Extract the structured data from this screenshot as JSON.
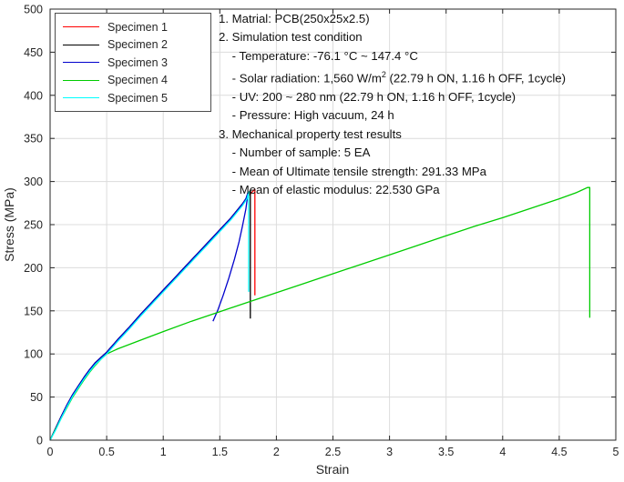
{
  "figure": {
    "background": "#ffffff"
  },
  "chart_data": {
    "type": "line",
    "title": "",
    "xlabel": "Strain",
    "ylabel": "Stress (MPa)",
    "xlim": [
      0,
      5
    ],
    "ylim": [
      0,
      500
    ],
    "xticks": [
      0,
      0.5,
      1,
      1.5,
      2,
      2.5,
      3,
      3.5,
      4,
      4.5,
      5
    ],
    "xtick_labels": [
      "0",
      "0.5",
      "1",
      "1.5",
      "2",
      "2.5",
      "3",
      "3.5",
      "4",
      "4.5",
      "5"
    ],
    "yticks": [
      0,
      50,
      100,
      150,
      200,
      250,
      300,
      350,
      400,
      450,
      500
    ],
    "ytick_labels": [
      "0",
      "50",
      "100",
      "150",
      "200",
      "250",
      "300",
      "350",
      "400",
      "450",
      "500"
    ],
    "grid": true,
    "grid_color": "#dcdcdc",
    "axis_color": "#262626",
    "legend_position": "top-left",
    "series": [
      {
        "name": "Specimen 1",
        "color": "#ff0000",
        "points": [
          [
            0,
            0
          ],
          [
            0.05,
            14
          ],
          [
            0.1,
            28
          ],
          [
            0.15,
            41
          ],
          [
            0.2,
            53
          ],
          [
            0.25,
            63
          ],
          [
            0.3,
            73
          ],
          [
            0.35,
            82
          ],
          [
            0.4,
            90
          ],
          [
            0.45,
            96
          ],
          [
            0.5,
            102
          ],
          [
            0.6,
            117
          ],
          [
            0.7,
            131
          ],
          [
            0.8,
            146
          ],
          [
            0.9,
            160
          ],
          [
            1.0,
            174
          ],
          [
            1.1,
            188
          ],
          [
            1.2,
            202
          ],
          [
            1.3,
            216
          ],
          [
            1.4,
            230
          ],
          [
            1.5,
            244
          ],
          [
            1.6,
            258
          ],
          [
            1.7,
            274
          ],
          [
            1.75,
            283
          ],
          [
            1.81,
            291
          ],
          [
            1.81,
            168
          ]
        ]
      },
      {
        "name": "Specimen 2",
        "color": "#000000",
        "points": [
          [
            0,
            0
          ],
          [
            0.05,
            14
          ],
          [
            0.1,
            28
          ],
          [
            0.15,
            41
          ],
          [
            0.2,
            53
          ],
          [
            0.25,
            63
          ],
          [
            0.3,
            73
          ],
          [
            0.35,
            82
          ],
          [
            0.4,
            90
          ],
          [
            0.45,
            96
          ],
          [
            0.5,
            102
          ],
          [
            0.6,
            117
          ],
          [
            0.7,
            131
          ],
          [
            0.8,
            146
          ],
          [
            0.9,
            160
          ],
          [
            1.0,
            174
          ],
          [
            1.1,
            188
          ],
          [
            1.2,
            202
          ],
          [
            1.3,
            216
          ],
          [
            1.4,
            230
          ],
          [
            1.5,
            244
          ],
          [
            1.6,
            258
          ],
          [
            1.7,
            274
          ],
          [
            1.75,
            284
          ],
          [
            1.77,
            290
          ],
          [
            1.77,
            141
          ]
        ]
      },
      {
        "name": "Specimen 3",
        "color": "#0000cc",
        "points": [
          [
            0,
            0
          ],
          [
            0.05,
            14
          ],
          [
            0.1,
            28
          ],
          [
            0.15,
            41
          ],
          [
            0.2,
            53
          ],
          [
            0.25,
            63
          ],
          [
            0.3,
            73
          ],
          [
            0.35,
            82
          ],
          [
            0.4,
            90
          ],
          [
            0.45,
            96
          ],
          [
            0.5,
            102
          ],
          [
            0.6,
            117
          ],
          [
            0.7,
            131
          ],
          [
            0.8,
            146
          ],
          [
            0.9,
            160
          ],
          [
            1.0,
            174
          ],
          [
            1.1,
            188
          ],
          [
            1.2,
            202
          ],
          [
            1.3,
            216
          ],
          [
            1.4,
            230
          ],
          [
            1.5,
            244
          ],
          [
            1.6,
            258
          ],
          [
            1.7,
            274
          ],
          [
            1.73,
            280
          ],
          [
            1.75,
            288
          ],
          [
            1.73,
            268
          ],
          [
            1.7,
            248
          ],
          [
            1.67,
            230
          ],
          [
            1.63,
            210
          ],
          [
            1.58,
            188
          ],
          [
            1.53,
            168
          ],
          [
            1.48,
            150
          ],
          [
            1.45,
            141
          ],
          [
            1.44,
            138
          ]
        ]
      },
      {
        "name": "Specimen 4",
        "color": "#00cc00",
        "points": [
          [
            0,
            0
          ],
          [
            0.05,
            13
          ],
          [
            0.1,
            26
          ],
          [
            0.15,
            38
          ],
          [
            0.2,
            50
          ],
          [
            0.25,
            60
          ],
          [
            0.3,
            70
          ],
          [
            0.35,
            79
          ],
          [
            0.4,
            87
          ],
          [
            0.45,
            94
          ],
          [
            0.5,
            100
          ],
          [
            0.6,
            106
          ],
          [
            0.8,
            116
          ],
          [
            1.0,
            126
          ],
          [
            1.25,
            138
          ],
          [
            1.5,
            149
          ],
          [
            1.75,
            160
          ],
          [
            2.0,
            171
          ],
          [
            2.25,
            182
          ],
          [
            2.5,
            193
          ],
          [
            2.75,
            204
          ],
          [
            3.0,
            215
          ],
          [
            3.25,
            226
          ],
          [
            3.5,
            237
          ],
          [
            3.75,
            248
          ],
          [
            4.0,
            258
          ],
          [
            4.25,
            269
          ],
          [
            4.5,
            280
          ],
          [
            4.65,
            287
          ],
          [
            4.75,
            293
          ],
          [
            4.77,
            293
          ],
          [
            4.77,
            142
          ]
        ]
      },
      {
        "name": "Specimen 5",
        "color": "#00ffff",
        "points": [
          [
            0,
            0
          ],
          [
            0.05,
            12
          ],
          [
            0.1,
            26
          ],
          [
            0.15,
            39
          ],
          [
            0.2,
            51
          ],
          [
            0.25,
            61
          ],
          [
            0.3,
            71
          ],
          [
            0.35,
            80
          ],
          [
            0.4,
            88
          ],
          [
            0.45,
            94
          ],
          [
            0.5,
            100
          ],
          [
            0.6,
            115
          ],
          [
            0.7,
            129
          ],
          [
            0.8,
            144
          ],
          [
            0.9,
            158
          ],
          [
            1.0,
            172
          ],
          [
            1.1,
            186
          ],
          [
            1.2,
            200
          ],
          [
            1.3,
            214
          ],
          [
            1.4,
            228
          ],
          [
            1.5,
            242
          ],
          [
            1.6,
            256
          ],
          [
            1.7,
            272
          ],
          [
            1.74,
            280
          ],
          [
            1.755,
            288
          ],
          [
            1.755,
            172
          ]
        ]
      }
    ],
    "annotations": [
      "1. Matrial: PCB(250x25x2.5)",
      "2. Simulation test condition",
      "    - Temperature: -76.1 °C ~ 147.4 °C",
      "    - Solar radiation: 1,560 W/m² (22.79 h ON, 1.16 h OFF, 1cycle)",
      "    - UV: 200 ~ 280 nm (22.79 h ON, 1.16 h OFF, 1cycle)",
      "    - Pressure: High vacuum, 24 h",
      "3. Mechanical property test results",
      "    - Number of sample: 5 EA",
      "    - Mean of Ultimate tensile strength: 291.33 MPa",
      "    - Mean of elastic modulus: 22.530 GPa"
    ]
  },
  "legend": {
    "items": [
      {
        "label": "Specimen 1",
        "color": "#ff0000"
      },
      {
        "label": "Specimen 2",
        "color": "#000000"
      },
      {
        "label": "Specimen 3",
        "color": "#0000cc"
      },
      {
        "label": "Specimen 4",
        "color": "#00cc00"
      },
      {
        "label": "Specimen 5",
        "color": "#00ffff"
      }
    ]
  },
  "annotation": {
    "lines": [
      "1. Matrial: PCB(250x25x2.5)",
      "2. Simulation test condition",
      "    - Temperature: -76.1 °C ~ 147.4 °C",
      "    - Solar radiation: 1,560 W/m² (22.79 h ON, 1.16 h OFF, 1cycle)",
      "    - UV: 200 ~ 280 nm (22.79 h ON, 1.16 h OFF, 1cycle)",
      "    - Pressure: High vacuum, 24 h",
      "3. Mechanical property test results",
      "    - Number of sample: 5 EA",
      "    - Mean of Ultimate tensile strength: 291.33 MPa",
      "    - Mean of elastic modulus: 22.530 GPa"
    ]
  }
}
